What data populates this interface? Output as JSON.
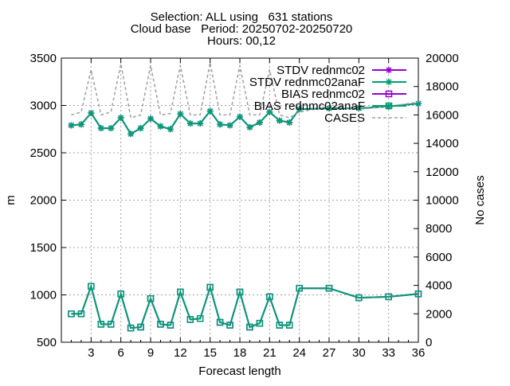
{
  "title_lines": [
    "Selection: ALL using   631 stations",
    "Cloud base   Period: 20250702-20250720",
    "Hours: 00,12"
  ],
  "chart_data": {
    "type": "line",
    "xlabel": "Forecast length",
    "ylabel": "m",
    "y2label": "No cases",
    "xlim": [
      0,
      36
    ],
    "ylim": [
      500,
      3500
    ],
    "y2lim": [
      0,
      20000
    ],
    "xticks": [
      3,
      6,
      9,
      12,
      15,
      18,
      21,
      24,
      27,
      30,
      33,
      36
    ],
    "yticks": [
      500,
      1000,
      1500,
      2000,
      2500,
      3000,
      3500
    ],
    "y2ticks": [
      0,
      2000,
      4000,
      6000,
      8000,
      10000,
      12000,
      14000,
      16000,
      18000,
      20000
    ],
    "grid": true,
    "legend_position": "top-right",
    "x": [
      1,
      2,
      3,
      4,
      5,
      6,
      7,
      8,
      9,
      10,
      11,
      12,
      13,
      14,
      15,
      16,
      17,
      18,
      19,
      20,
      21,
      22,
      23,
      24,
      27,
      30,
      33,
      36
    ],
    "series": [
      {
        "name": "STDV rednmc02",
        "color": "#9400d3",
        "marker": "star",
        "axis": "y1",
        "values": [
          2790,
          2800,
          2920,
          2760,
          2760,
          2870,
          2700,
          2760,
          2860,
          2780,
          2750,
          2910,
          2810,
          2810,
          2940,
          2800,
          2790,
          2880,
          2770,
          2820,
          2930,
          2840,
          2820,
          2960,
          2970,
          2970,
          2990,
          3020
        ]
      },
      {
        "name": "STDV rednmc02_anaF",
        "color": "#009e73",
        "marker": "star",
        "axis": "y1",
        "values": [
          2790,
          2800,
          2920,
          2760,
          2760,
          2870,
          2700,
          2760,
          2860,
          2780,
          2750,
          2910,
          2810,
          2810,
          2940,
          2800,
          2790,
          2880,
          2770,
          2820,
          2930,
          2840,
          2820,
          2960,
          2970,
          2970,
          2990,
          3020
        ]
      },
      {
        "name": "BIAS rednmc02",
        "color": "#9400d3",
        "marker": "square",
        "axis": "y1",
        "values": [
          800,
          800,
          1090,
          690,
          690,
          1010,
          650,
          660,
          960,
          690,
          680,
          1030,
          740,
          750,
          1080,
          710,
          680,
          1030,
          660,
          700,
          980,
          680,
          680,
          1070,
          1070,
          970,
          980,
          1010
        ]
      },
      {
        "name": "BIAS rednmc02_anaF",
        "color": "#009e73",
        "marker": "square",
        "axis": "y1",
        "values": [
          800,
          800,
          1090,
          690,
          690,
          1010,
          650,
          660,
          960,
          690,
          680,
          1030,
          740,
          750,
          1080,
          710,
          680,
          1030,
          660,
          700,
          980,
          680,
          680,
          1070,
          1070,
          970,
          980,
          1010
        ]
      },
      {
        "name": "CASES",
        "color": "#a0a0a0",
        "marker": "none",
        "axis": "y2",
        "values": [
          16000,
          16200,
          19200,
          16000,
          16200,
          19600,
          15800,
          16000,
          19500,
          16000,
          16100,
          19500,
          16000,
          16000,
          19700,
          16000,
          16000,
          19500,
          16000,
          16000,
          19200,
          16000,
          15800,
          16200,
          16600,
          16400,
          16600,
          16900
        ]
      }
    ]
  }
}
